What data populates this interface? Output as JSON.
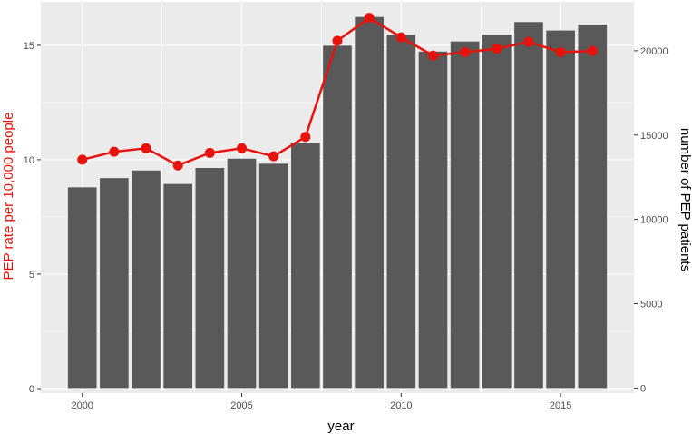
{
  "chart_data": {
    "type": "bar",
    "xlabel": "year",
    "ylabel_left": "PEP rate per 10,000 people",
    "ylabel_right": "number of PEP patients",
    "x": [
      2000,
      2001,
      2002,
      2003,
      2004,
      2005,
      2006,
      2007,
      2008,
      2009,
      2010,
      2011,
      2012,
      2013,
      2014,
      2015,
      2016
    ],
    "xlim": [
      1998.7,
      2017.3
    ],
    "x_ticks": [
      "2000",
      "2005",
      "2010",
      "2015"
    ],
    "bars": {
      "name": "number of PEP patients",
      "axis": "right",
      "color": "#595959",
      "values": [
        11900,
        12450,
        12900,
        12100,
        13050,
        13600,
        13300,
        14550,
        20300,
        22000,
        20950,
        19950,
        20550,
        20950,
        21700,
        21200,
        21550
      ]
    },
    "line": {
      "name": "PEP rate per 10,000 people",
      "axis": "left",
      "color": "#e8120c",
      "values": [
        10.0,
        10.35,
        10.5,
        9.75,
        10.3,
        10.5,
        10.15,
        11.0,
        15.2,
        16.2,
        15.35,
        14.55,
        14.7,
        14.85,
        15.15,
        14.7,
        14.75
      ]
    },
    "y_left": {
      "lim": [
        -0.2,
        16.9
      ],
      "ticks": [
        0,
        5,
        10,
        15
      ],
      "tick_labels": [
        "0",
        "5",
        "10",
        "15"
      ]
    },
    "y_right": {
      "lim": [
        -300,
        22900
      ],
      "ticks": [
        0,
        5000,
        10000,
        15000,
        20000
      ],
      "tick_labels": [
        "0",
        "5000",
        "10000",
        "15000",
        "20000"
      ]
    },
    "grid": true,
    "panel_background": "#ebebeb",
    "ylabel_left_color": "#e8120c",
    "ylabel_right_color": "#000000"
  }
}
